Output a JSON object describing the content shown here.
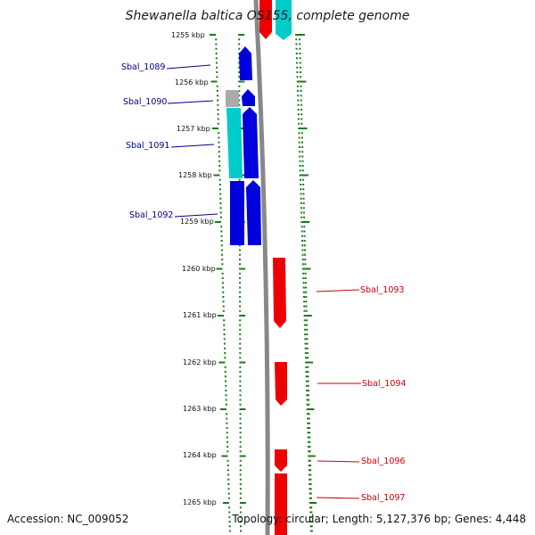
{
  "title_prefix": "Shewanella baltica OS155",
  "title_suffix": ", complete genome",
  "footer": {
    "accession": "Accession: NC_009052",
    "topology": "Topology: circular; Length: 5,127,376 bp; Genes: 4,448"
  },
  "colors": {
    "forward_gene": "#0000dd",
    "reverse_gene": "#ee0000",
    "cyan_feature": "#00cccc",
    "grey_feature": "#aaaaaa",
    "tick": "#1a7a1a",
    "backbone": "#888888",
    "forward_label": "#00008b",
    "reverse_label": "#cc0000"
  },
  "scale": {
    "unit": "kbp",
    "ticks": [
      "1255 kbp",
      "1256 kbp",
      "1257 kbp",
      "1258 kbp",
      "1259 kbp",
      "1260 kbp",
      "1261 kbp",
      "1262 kbp",
      "1263 kbp",
      "1264 kbp",
      "1265 kbp"
    ]
  },
  "genes": {
    "forward": [
      "Sbal_1089",
      "Sbal_1090",
      "Sbal_1091",
      "Sbal_1092"
    ],
    "reverse": [
      "Sbal_1093",
      "Sbal_1094",
      "Sbal_1096",
      "Sbal_1097"
    ]
  }
}
